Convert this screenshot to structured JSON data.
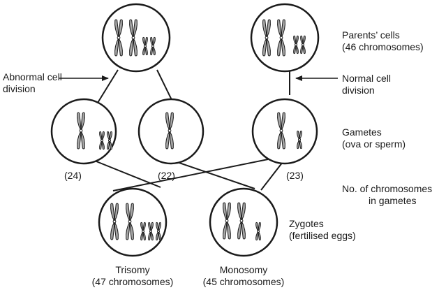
{
  "labels": {
    "abnormal_line1": "Abnormal cell",
    "abnormal_line2": "division",
    "parents_line1": "Parents’ cells",
    "parents_line2": "(46 chromosomes)",
    "normal_line1": "Normal cell",
    "normal_line2": "division",
    "gametes_line1": "Gametes",
    "gametes_line2": "(ova or sperm)",
    "count_line1": "No. of chromosomes",
    "count_line2": "in gametes",
    "zygotes_line1": "Zygotes",
    "zygotes_line2": "(fertilised eggs)",
    "trisomy_line1": "Trisomy",
    "trisomy_line2": "(47 chromosomes)",
    "monosomy_line1": "Monosomy",
    "monosomy_line2": "(45 chromosomes)"
  },
  "gamete_counts": {
    "left": "(24)",
    "middle": "(22)",
    "right": "(23)"
  },
  "colors": {
    "stroke": "#1a1a1a",
    "chromosome_fill": "#a8a8a8",
    "background": "#ffffff"
  }
}
